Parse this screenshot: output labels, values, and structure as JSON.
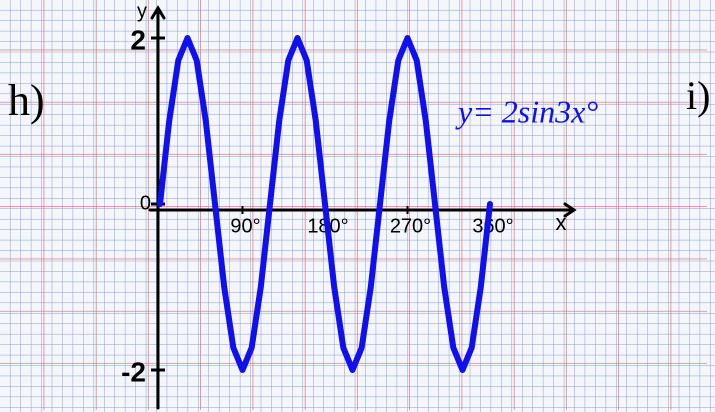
{
  "chart_data": {
    "type": "line",
    "annotations": [
      "h)",
      "i)",
      "y= 2sin3x°"
    ],
    "x_label": "x",
    "y_label": "y",
    "x": [
      0,
      10,
      20,
      30,
      40,
      50,
      60,
      70,
      80,
      90,
      100,
      110,
      120,
      130,
      140,
      150,
      160,
      170,
      180,
      190,
      200,
      210,
      220,
      230,
      240,
      250,
      260,
      270,
      280,
      290,
      300,
      310,
      320,
      330,
      340,
      350,
      360
    ],
    "series": [
      {
        "color": "#1010ee",
        "values": [
          0,
          1,
          1.73,
          2,
          1.73,
          1,
          0,
          -1,
          -1.73,
          -2,
          -1.73,
          -1,
          0,
          1,
          1.73,
          2,
          1.73,
          1,
          0,
          -1,
          -1.73,
          -2,
          -1.73,
          -1,
          0,
          1,
          1.73,
          2,
          1.73,
          1,
          0,
          -1,
          -1.73,
          -2,
          -1.73,
          -1,
          0
        ]
      }
    ],
    "xlim": [
      0,
      360
    ],
    "ylim": [
      -2,
      2
    ],
    "xticks": [
      {
        "value": 90,
        "label": "90°"
      },
      {
        "value": 180,
        "label": "180°"
      },
      {
        "value": 270,
        "label": "270°"
      },
      {
        "value": 360,
        "label": "360°"
      }
    ],
    "yticks": [
      -2,
      0,
      2
    ]
  }
}
